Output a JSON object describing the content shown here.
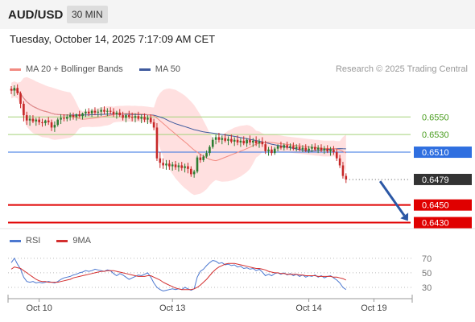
{
  "header": {
    "symbol": "AUD/USD",
    "timeframe": "30 MIN",
    "timestamp": "Tuesday, October 14, 2025 7:17:09 AM CET",
    "credit": "Research © 2025 Trading Central"
  },
  "colors": {
    "bull": "#2e7d32",
    "bear": "#c62828",
    "band_fill": "#ffd6d6",
    "ma20": "#f28b82",
    "ma50": "#3f5a9e",
    "support": "#e00000",
    "resistance": "#a5d27a",
    "pivot": "#2f6fe0",
    "current": "#333333",
    "rsi": "#4c78d0",
    "rsi_ma": "#d32f2f",
    "arrow": "#2b57a5"
  },
  "chart_data": [
    {
      "type": "candlestick",
      "legend": [
        {
          "name": "MA 20 + Bollinger Bands",
          "color": "#f28b82"
        },
        {
          "name": "MA 50",
          "color": "#3f5a9e"
        }
      ],
      "x_ticks": [
        {
          "label": "Oct 10",
          "index": 9
        },
        {
          "label": "Oct 13",
          "index": 52
        },
        {
          "label": "Oct 14",
          "index": 96
        },
        {
          "label": "Oct 19",
          "index": 117
        }
      ],
      "ylim": [
        0.6425,
        0.6596
      ],
      "levels": [
        {
          "value": 0.655,
          "label": "0.6550",
          "kind": "resistance"
        },
        {
          "value": 0.653,
          "label": "0.6530",
          "kind": "resistance"
        },
        {
          "value": 0.651,
          "label": "0.6510",
          "kind": "pivot"
        },
        {
          "value": 0.6479,
          "label": "0.6479",
          "kind": "current"
        },
        {
          "value": 0.645,
          "label": "0.6450",
          "kind": "support"
        },
        {
          "value": 0.643,
          "label": "0.6430",
          "kind": "support"
        }
      ],
      "forecast_arrow": {
        "from_index": 119,
        "from_value": 0.6477,
        "to_index": 128,
        "to_value": 0.6432
      },
      "candles_ohlc": [
        [
          0.6582,
          0.6585,
          0.6576,
          0.658
        ],
        [
          0.658,
          0.6586,
          0.6574,
          0.6583
        ],
        [
          0.6583,
          0.6587,
          0.6575,
          0.6577
        ],
        [
          0.6577,
          0.6579,
          0.656,
          0.6565
        ],
        [
          0.6565,
          0.6568,
          0.6545,
          0.6552
        ],
        [
          0.6552,
          0.6556,
          0.6541,
          0.6546
        ],
        [
          0.6546,
          0.6552,
          0.654,
          0.6548
        ],
        [
          0.6548,
          0.6552,
          0.6543,
          0.6545
        ],
        [
          0.6545,
          0.6549,
          0.654,
          0.6547
        ],
        [
          0.6547,
          0.655,
          0.6541,
          0.6544
        ],
        [
          0.6544,
          0.6548,
          0.6539,
          0.6543
        ],
        [
          0.6543,
          0.6547,
          0.654,
          0.6546
        ],
        [
          0.6546,
          0.655,
          0.6541,
          0.6544
        ],
        [
          0.6544,
          0.6547,
          0.6534,
          0.6538
        ],
        [
          0.6538,
          0.6545,
          0.6533,
          0.6541
        ],
        [
          0.6541,
          0.6549,
          0.6539,
          0.6547
        ],
        [
          0.6547,
          0.6553,
          0.6542,
          0.6549
        ],
        [
          0.6549,
          0.6553,
          0.6545,
          0.6548
        ],
        [
          0.6548,
          0.6553,
          0.6545,
          0.655
        ],
        [
          0.655,
          0.6555,
          0.6546,
          0.6552
        ],
        [
          0.6552,
          0.6555,
          0.6547,
          0.655
        ],
        [
          0.655,
          0.6554,
          0.6546,
          0.6553
        ],
        [
          0.6553,
          0.6557,
          0.6549,
          0.6551
        ],
        [
          0.6551,
          0.6555,
          0.6547,
          0.6554
        ],
        [
          0.6554,
          0.6559,
          0.655,
          0.6556
        ],
        [
          0.6556,
          0.656,
          0.6551,
          0.6554
        ],
        [
          0.6554,
          0.6559,
          0.655,
          0.6557
        ],
        [
          0.6557,
          0.6561,
          0.6552,
          0.6555
        ],
        [
          0.6555,
          0.6559,
          0.655,
          0.6556
        ],
        [
          0.6556,
          0.6561,
          0.6551,
          0.6558
        ],
        [
          0.6558,
          0.6562,
          0.6553,
          0.6556
        ],
        [
          0.6556,
          0.656,
          0.6551,
          0.6557
        ],
        [
          0.6557,
          0.6561,
          0.6553,
          0.6556
        ],
        [
          0.6556,
          0.656,
          0.655,
          0.6553
        ],
        [
          0.6553,
          0.6557,
          0.6548,
          0.6555
        ],
        [
          0.6555,
          0.6559,
          0.655,
          0.6552
        ],
        [
          0.6552,
          0.6556,
          0.6546,
          0.6549
        ],
        [
          0.6549,
          0.6554,
          0.6544,
          0.6552
        ],
        [
          0.6552,
          0.6557,
          0.6548,
          0.655
        ],
        [
          0.655,
          0.6555,
          0.6545,
          0.6549
        ],
        [
          0.6549,
          0.6554,
          0.6544,
          0.6551
        ],
        [
          0.6551,
          0.6556,
          0.6546,
          0.6548
        ],
        [
          0.6548,
          0.6553,
          0.6543,
          0.655
        ],
        [
          0.655,
          0.6554,
          0.6544,
          0.6547
        ],
        [
          0.6547,
          0.6552,
          0.6542,
          0.6549
        ],
        [
          0.6549,
          0.6553,
          0.6542,
          0.6544
        ],
        [
          0.6544,
          0.6548,
          0.6535,
          0.6538
        ],
        [
          0.6538,
          0.6543,
          0.65,
          0.6503
        ],
        [
          0.6503,
          0.651,
          0.6492,
          0.6498
        ],
        [
          0.6498,
          0.6503,
          0.6491,
          0.6495
        ],
        [
          0.6495,
          0.6501,
          0.649,
          0.6497
        ],
        [
          0.6497,
          0.6501,
          0.649,
          0.6494
        ],
        [
          0.6494,
          0.6499,
          0.6489,
          0.6496
        ],
        [
          0.6496,
          0.65,
          0.649,
          0.6493
        ],
        [
          0.6493,
          0.6498,
          0.6488,
          0.6495
        ],
        [
          0.6495,
          0.6499,
          0.6489,
          0.6492
        ],
        [
          0.6492,
          0.6497,
          0.6487,
          0.6494
        ],
        [
          0.6494,
          0.6498,
          0.6486,
          0.6491
        ],
        [
          0.6491,
          0.6494,
          0.6482,
          0.6485
        ],
        [
          0.6485,
          0.649,
          0.6481,
          0.6488
        ],
        [
          0.6488,
          0.6506,
          0.6486,
          0.6504
        ],
        [
          0.6504,
          0.6508,
          0.6498,
          0.6501
        ],
        [
          0.6501,
          0.6507,
          0.6499,
          0.6505
        ],
        [
          0.6505,
          0.6512,
          0.6503,
          0.6509
        ],
        [
          0.6509,
          0.6518,
          0.6506,
          0.6516
        ],
        [
          0.6516,
          0.6527,
          0.6514,
          0.6524
        ],
        [
          0.6524,
          0.653,
          0.6519,
          0.6527
        ],
        [
          0.6527,
          0.6532,
          0.6521,
          0.6524
        ],
        [
          0.6524,
          0.6529,
          0.6519,
          0.6526
        ],
        [
          0.6526,
          0.6531,
          0.6521,
          0.6523
        ],
        [
          0.6523,
          0.6528,
          0.6518,
          0.6525
        ],
        [
          0.6525,
          0.653,
          0.652,
          0.6522
        ],
        [
          0.6522,
          0.6527,
          0.6517,
          0.6524
        ],
        [
          0.6524,
          0.6529,
          0.6518,
          0.6521
        ],
        [
          0.6521,
          0.6526,
          0.6516,
          0.6523
        ],
        [
          0.6523,
          0.6528,
          0.6518,
          0.652
        ],
        [
          0.652,
          0.6526,
          0.6516,
          0.6524
        ],
        [
          0.6524,
          0.6529,
          0.6518,
          0.6521
        ],
        [
          0.6521,
          0.6526,
          0.6516,
          0.6523
        ],
        [
          0.6523,
          0.6528,
          0.6517,
          0.652
        ],
        [
          0.652,
          0.6525,
          0.6515,
          0.6522
        ],
        [
          0.6522,
          0.6527,
          0.6516,
          0.6519
        ],
        [
          0.6519,
          0.6523,
          0.6508,
          0.6511
        ],
        [
          0.6511,
          0.6516,
          0.6506,
          0.6513
        ],
        [
          0.6513,
          0.6517,
          0.6506,
          0.6509
        ],
        [
          0.6509,
          0.6516,
          0.6507,
          0.6514
        ],
        [
          0.6514,
          0.6519,
          0.6511,
          0.6517
        ],
        [
          0.6517,
          0.6522,
          0.6513,
          0.6515
        ],
        [
          0.6515,
          0.652,
          0.6512,
          0.6518
        ],
        [
          0.6518,
          0.6522,
          0.6513,
          0.6515
        ],
        [
          0.6515,
          0.652,
          0.6512,
          0.6517
        ],
        [
          0.6517,
          0.6521,
          0.6512,
          0.6514
        ],
        [
          0.6514,
          0.6519,
          0.6511,
          0.6516
        ],
        [
          0.6516,
          0.652,
          0.6511,
          0.6513
        ],
        [
          0.6513,
          0.6518,
          0.651,
          0.6515
        ],
        [
          0.6515,
          0.6519,
          0.651,
          0.6512
        ],
        [
          0.6512,
          0.6517,
          0.6509,
          0.6514
        ],
        [
          0.6514,
          0.6519,
          0.651,
          0.6516
        ],
        [
          0.6516,
          0.652,
          0.6511,
          0.6513
        ],
        [
          0.6513,
          0.6518,
          0.6509,
          0.6515
        ],
        [
          0.6515,
          0.6519,
          0.651,
          0.6512
        ],
        [
          0.6512,
          0.6517,
          0.6508,
          0.6514
        ],
        [
          0.6514,
          0.6518,
          0.6509,
          0.6511
        ],
        [
          0.6511,
          0.6516,
          0.6506,
          0.6513
        ],
        [
          0.6513,
          0.6517,
          0.6507,
          0.651
        ],
        [
          0.651,
          0.6514,
          0.65,
          0.6503
        ],
        [
          0.6503,
          0.6507,
          0.6492,
          0.6495
        ],
        [
          0.6495,
          0.6499,
          0.648,
          0.6483
        ],
        [
          0.6483,
          0.6486,
          0.6475,
          0.6479
        ]
      ]
    },
    {
      "type": "line",
      "legend": [
        {
          "name": "RSI",
          "color": "#4c78d0"
        },
        {
          "name": "9MA",
          "color": "#d32f2f"
        }
      ],
      "ylim": [
        20,
        82
      ],
      "y_ticks": [
        70,
        50,
        30
      ],
      "series": [
        {
          "name": "RSI",
          "values": [
            64,
            70,
            62,
            55,
            44,
            38,
            37,
            38,
            36,
            37,
            36,
            37,
            38,
            37,
            36,
            38,
            41,
            43,
            44,
            45,
            47,
            48,
            50,
            51,
            53,
            52,
            53,
            55,
            54,
            53,
            52,
            54,
            53,
            49,
            46,
            49,
            47,
            44,
            41,
            43,
            45,
            47,
            46,
            48,
            50,
            44,
            36,
            30,
            27,
            25,
            26,
            27,
            28,
            27,
            28,
            27,
            30,
            28,
            26,
            28,
            44,
            52,
            55,
            60,
            64,
            67,
            66,
            63,
            64,
            61,
            62,
            60,
            61,
            58,
            59,
            56,
            57,
            55,
            56,
            53,
            55,
            51,
            46,
            48,
            46,
            49,
            50,
            48,
            50,
            47,
            49,
            46,
            48,
            45,
            47,
            44,
            46,
            45,
            47,
            44,
            46,
            43,
            45,
            46,
            43,
            40,
            36,
            30,
            27
          ]
        },
        {
          "name": "9MA",
          "values": [
            55,
            58,
            57,
            56,
            53,
            50,
            47,
            44,
            41,
            39,
            38,
            38,
            37,
            37,
            37,
            37,
            38,
            39,
            40,
            41,
            43,
            44,
            45,
            46,
            47,
            48,
            49,
            50,
            51,
            52,
            52,
            53,
            53,
            53,
            52,
            51,
            50,
            49,
            48,
            47,
            46,
            45,
            45,
            45,
            46,
            46,
            44,
            42,
            40,
            37,
            35,
            33,
            31,
            29,
            28,
            27,
            27,
            27,
            27,
            28,
            30,
            33,
            37,
            41,
            46,
            51,
            55,
            58,
            60,
            62,
            63,
            63,
            63,
            62,
            61,
            60,
            59,
            58,
            57,
            56,
            56,
            55,
            54,
            52,
            51,
            50,
            50,
            49,
            49,
            48,
            48,
            48,
            48,
            47,
            47,
            46,
            46,
            46,
            46,
            45,
            45,
            45,
            45,
            45,
            44,
            44,
            43,
            42,
            40
          ]
        }
      ]
    }
  ]
}
